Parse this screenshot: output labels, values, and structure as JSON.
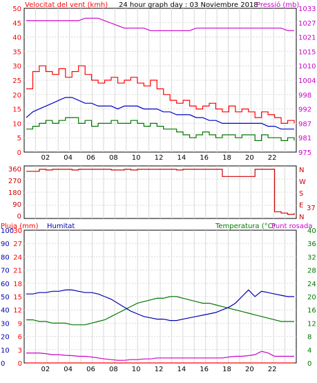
{
  "chart_data": [
    {
      "type": "line",
      "title": "24 hour graph day : 03 Noviembre 2018",
      "left_label": "Velocitat del vent (kmh)",
      "right_label": "Pressió (mb)",
      "x_ticks": [
        "02",
        "04",
        "06",
        "08",
        "10",
        "12",
        "14",
        "16",
        "18",
        "20",
        "22",
        ""
      ],
      "y_left_ticks": [
        "0",
        "5",
        "10",
        "15",
        "20",
        "25",
        "30",
        "35",
        "40",
        "45",
        "50"
      ],
      "y_right_ticks": [
        "975",
        "981",
        "987",
        "992",
        "998",
        "1004",
        "1010",
        "1015",
        "1021",
        "1027",
        "1033"
      ],
      "ylim_left": [
        0,
        50
      ],
      "series": [
        {
          "name": "Velocitat del vent",
          "color": "#0000cc",
          "values": [
            12,
            14,
            15,
            16,
            17,
            18,
            19,
            19,
            18,
            17,
            17,
            16,
            16,
            16,
            15,
            16,
            16,
            16,
            15,
            15,
            15,
            14,
            14,
            13,
            13,
            13,
            12,
            12,
            11,
            11,
            10,
            10,
            10,
            10,
            10,
            10,
            10,
            9,
            9,
            8,
            8,
            8
          ]
        },
        {
          "name": "Ràfega",
          "color": "#ff0000",
          "values": [
            22,
            28,
            30,
            28,
            27,
            29,
            26,
            28,
            30,
            27,
            25,
            24,
            25,
            26,
            24,
            25,
            26,
            24,
            23,
            25,
            22,
            20,
            18,
            17,
            18,
            16,
            15,
            16,
            17,
            15,
            14,
            16,
            14,
            15,
            14,
            12,
            14,
            13,
            12,
            10,
            11,
            10
          ]
        },
        {
          "name": "Mitjana",
          "color": "#007700",
          "values": [
            8,
            9,
            10,
            11,
            10,
            11,
            12,
            12,
            10,
            11,
            9,
            10,
            10,
            11,
            10,
            10,
            11,
            10,
            9,
            10,
            9,
            8,
            8,
            7,
            6,
            5,
            6,
            7,
            6,
            5,
            6,
            6,
            5,
            6,
            6,
            4,
            6,
            5,
            5,
            4,
            5,
            4
          ]
        },
        {
          "name": "Pressió",
          "color": "#cc00cc",
          "values": [
            1028,
            1028,
            1028,
            1028,
            1028,
            1028,
            1028,
            1028,
            1028,
            1029,
            1029,
            1029,
            1028,
            1027,
            1026,
            1025,
            1025,
            1025,
            1025,
            1024,
            1024,
            1024,
            1024,
            1024,
            1024,
            1024,
            1025,
            1025,
            1025,
            1025,
            1025,
            1025,
            1025,
            1025,
            1025,
            1025,
            1025,
            1025,
            1025,
            1025,
            1024,
            1024
          ]
        }
      ]
    },
    {
      "type": "line",
      "left_ticks": [
        "360",
        "270",
        "180",
        "90",
        "0"
      ],
      "right_labels": [
        "N",
        "W",
        "S",
        "E",
        "N"
      ],
      "right_value": "37",
      "ylim": [
        0,
        360
      ],
      "series": [
        {
          "name": "Direcció",
          "color": "#cc0000",
          "values": [
            340,
            340,
            355,
            350,
            355,
            355,
            355,
            350,
            355,
            355,
            355,
            355,
            355,
            350,
            350,
            355,
            350,
            355,
            355,
            355,
            355,
            355,
            355,
            350,
            355,
            355,
            355,
            355,
            355,
            355,
            300,
            300,
            300,
            300,
            300,
            355,
            355,
            355,
            30,
            20,
            10,
            20
          ]
        }
      ]
    },
    {
      "type": "line",
      "labels": {
        "pluja": "Pluja (mm)",
        "humitat": "Humitat",
        "temperatura": "Temperatura (°C)",
        "punt_rosada": "Punt rosada"
      },
      "humitat_ticks": [
        "100",
        "90",
        "80",
        "70",
        "60",
        "50",
        "40",
        "30",
        "20",
        "10",
        "0"
      ],
      "pluja_ticks": [
        "30",
        "27",
        "24",
        "21",
        "18",
        "15",
        "12",
        "9",
        "6",
        "3",
        "0"
      ],
      "temp_ticks": [
        "40",
        "36",
        "32",
        "28",
        "24",
        "20",
        "16",
        "12",
        "8",
        "4",
        "0"
      ],
      "x_ticks": [
        "02",
        "04",
        "06",
        "08",
        "10",
        "12",
        "14",
        "16",
        "18",
        "20",
        "22",
        ""
      ],
      "series": [
        {
          "name": "Humitat",
          "color": "#0000aa",
          "values": [
            52,
            52,
            53,
            53,
            54,
            54,
            55,
            55,
            54,
            53,
            53,
            52,
            50,
            48,
            45,
            42,
            39,
            37,
            35,
            34,
            33,
            33,
            32,
            32,
            33,
            34,
            35,
            36,
            37,
            38,
            40,
            42,
            45,
            50,
            55,
            50,
            54,
            53,
            52,
            51,
            50,
            50
          ]
        },
        {
          "name": "Temperatura",
          "color": "#007700",
          "values": [
            13,
            13,
            12.5,
            12.5,
            12,
            12,
            12,
            11.5,
            11.5,
            11.5,
            12,
            12.5,
            13,
            14,
            15,
            16,
            17,
            18,
            18.5,
            19,
            19.5,
            19.5,
            20,
            20,
            19.5,
            19,
            18.5,
            18,
            18,
            17.5,
            17,
            16.5,
            16,
            15.5,
            15,
            14.5,
            14,
            13.5,
            13,
            12.5,
            12.5,
            12.5
          ]
        },
        {
          "name": "Punt rosada",
          "color": "#cc00cc",
          "values": [
            3,
            3,
            3,
            2.8,
            2.5,
            2.5,
            2.3,
            2.2,
            2,
            2,
            1.8,
            1.5,
            1.2,
            1,
            0.8,
            0.8,
            1,
            1,
            1.2,
            1.2,
            1.5,
            1.5,
            1.5,
            1.5,
            1.5,
            1.5,
            1.5,
            1.5,
            1.5,
            1.5,
            1.5,
            1.8,
            2,
            2,
            2.2,
            2.5,
            3.5,
            3,
            2,
            2,
            2,
            2
          ]
        },
        {
          "name": "Pluja",
          "color": "#ff0000",
          "values": [
            0,
            0,
            0,
            0,
            0,
            0,
            0,
            0,
            0,
            0,
            0,
            0,
            0,
            0,
            0,
            0,
            0,
            0,
            0,
            0,
            0,
            0,
            0,
            0,
            0,
            0,
            0,
            0,
            0,
            0,
            0,
            0,
            0,
            0,
            0,
            0,
            0,
            0,
            0,
            0,
            0,
            0
          ]
        }
      ]
    }
  ]
}
